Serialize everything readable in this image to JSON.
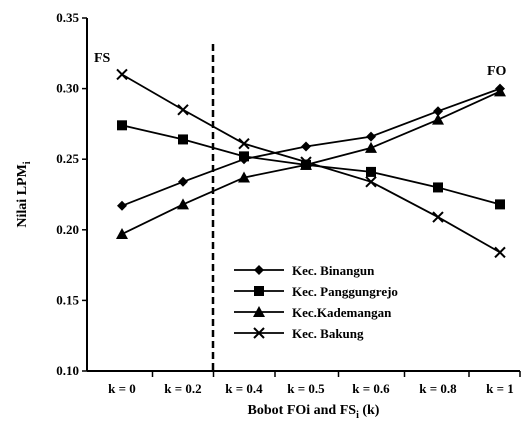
{
  "chart_data": {
    "type": "line",
    "categories": [
      "k = 0",
      "k = 0.2",
      "k = 0.4",
      "k = 0.5",
      "k = 0.6",
      "k = 0.8",
      "k = 1"
    ],
    "series": [
      {
        "name": "Kec. Binangun",
        "marker": "diamond",
        "values": [
          0.217,
          0.234,
          0.25,
          0.259,
          0.266,
          0.284,
          0.3
        ]
      },
      {
        "name": "Kec. Panggungrejo",
        "marker": "square",
        "values": [
          0.274,
          0.264,
          0.252,
          0.246,
          0.241,
          0.23,
          0.218
        ]
      },
      {
        "name": "Kec.Kademangan",
        "marker": "triangle",
        "values": [
          0.197,
          0.218,
          0.237,
          0.246,
          0.258,
          0.278,
          0.298
        ]
      },
      {
        "name": "Kec. Bakung",
        "marker": "x",
        "values": [
          0.31,
          0.285,
          0.261,
          0.248,
          0.234,
          0.209,
          0.184
        ]
      }
    ],
    "xlabel": "Bobot FOi and FS",
    "xlabel_sub": "i",
    "xlabel_suffix": " (k)",
    "ylabel": "Nilai LPM",
    "ylabel_sub": "i",
    "ylim": [
      0.1,
      0.35
    ],
    "yticks": [
      "0.10",
      "0.15",
      "0.20",
      "0.25",
      "0.30",
      "0.35"
    ],
    "annotations": {
      "left": "FS",
      "right": "FO"
    },
    "legend_position": "bottom-right",
    "grid": false
  }
}
